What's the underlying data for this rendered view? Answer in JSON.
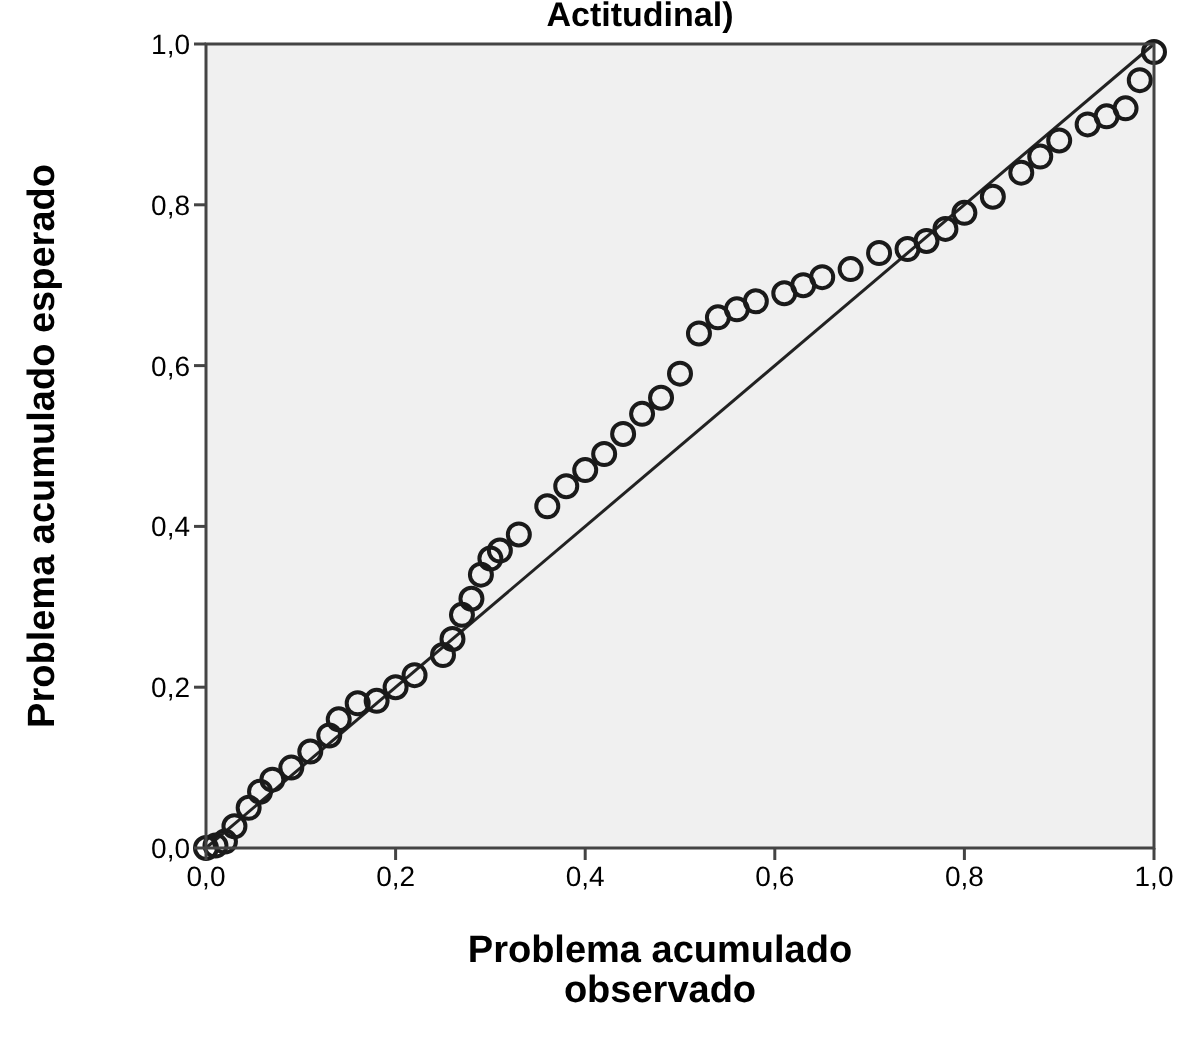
{
  "chart_data": {
    "type": "scatter",
    "title": "Actitudinal)",
    "xlabel": "Problema acumulado\nobservado",
    "ylabel": "Problema acumulado esperado",
    "xlim": [
      0,
      1
    ],
    "ylim": [
      0,
      1
    ],
    "xticks": [
      {
        "value": 0,
        "label": "0,0"
      },
      {
        "value": 0.2,
        "label": "0,2"
      },
      {
        "value": 0.4,
        "label": "0,4"
      },
      {
        "value": 0.6,
        "label": "0,6"
      },
      {
        "value": 0.8,
        "label": "0,8"
      },
      {
        "value": 1,
        "label": "1,0"
      }
    ],
    "yticks": [
      {
        "value": 0,
        "label": "0,0"
      },
      {
        "value": 0.2,
        "label": "0,2"
      },
      {
        "value": 0.4,
        "label": "0,4"
      },
      {
        "value": 0.6,
        "label": "0,6"
      },
      {
        "value": 0.8,
        "label": "0,8"
      },
      {
        "value": 1,
        "label": "1,0"
      }
    ],
    "grid": false,
    "series": [
      {
        "color": "#1a1a1a",
        "marker": "circle",
        "x": [
          0,
          0.01,
          0.02,
          0.03,
          0.045,
          0.057,
          0.07,
          0.09,
          0.11,
          0.13,
          0.14,
          0.16,
          0.18,
          0.2,
          0.22,
          0.25,
          0.26,
          0.27,
          0.28,
          0.29,
          0.3,
          0.31,
          0.33,
          0.36,
          0.38,
          0.4,
          0.42,
          0.44,
          0.46,
          0.48,
          0.5,
          0.52,
          0.54,
          0.56,
          0.58,
          0.61,
          0.63,
          0.65,
          0.68,
          0.71,
          0.74,
          0.76,
          0.78,
          0.8,
          0.83,
          0.86,
          0.88,
          0.9,
          0.93,
          0.95,
          0.97,
          0.985,
          1.0
        ],
        "values": [
          0,
          0.003,
          0.008,
          0.027,
          0.05,
          0.07,
          0.085,
          0.1,
          0.12,
          0.14,
          0.16,
          0.18,
          0.183,
          0.2,
          0.215,
          0.24,
          0.26,
          0.29,
          0.31,
          0.34,
          0.36,
          0.37,
          0.39,
          0.425,
          0.45,
          0.47,
          0.49,
          0.515,
          0.54,
          0.56,
          0.59,
          0.64,
          0.66,
          0.67,
          0.68,
          0.69,
          0.7,
          0.71,
          0.72,
          0.74,
          0.745,
          0.755,
          0.77,
          0.79,
          0.81,
          0.84,
          0.86,
          0.88,
          0.9,
          0.91,
          0.92,
          0.955,
          0.99
        ]
      },
      {
        "type": "line",
        "color": "#222222",
        "line_style": "solid",
        "x": [
          0,
          1
        ],
        "values": [
          0,
          1
        ]
      }
    ]
  }
}
